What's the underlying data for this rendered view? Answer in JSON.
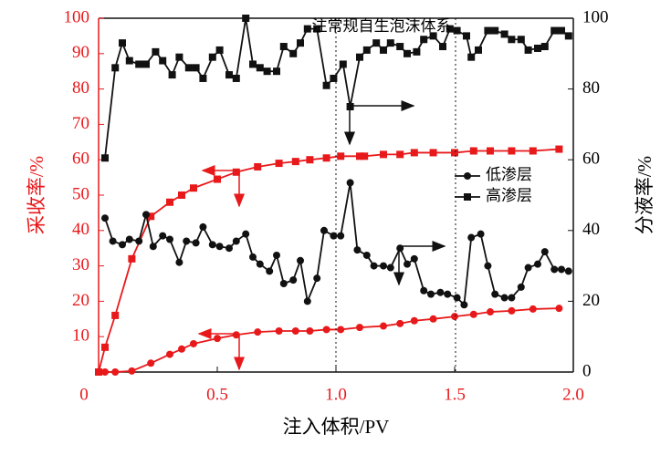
{
  "chart_data": {
    "type": "line",
    "annotation": "注常规自生泡沫体系",
    "xlabel": "注入体积/PV",
    "ylabel": "采收率/%",
    "y2label": "分液率/%",
    "xlim": [
      0,
      2.0
    ],
    "ylim": [
      0,
      100
    ],
    "y2lim": [
      0,
      100
    ],
    "xticks": [
      0.5,
      {
        "value": 1.0,
        "label": "1.0"
      },
      1.5,
      {
        "value": 2.0,
        "label": "2.0"
      }
    ],
    "yticks": [
      0,
      10,
      20,
      30,
      40,
      50,
      60,
      70,
      80,
      90,
      100
    ],
    "y2ticks": [
      0,
      20,
      40,
      60,
      80,
      100
    ],
    "legend": "right",
    "series": [
      {
        "color": "#e8191b",
        "marker": "square",
        "x": [
          0,
          0.027,
          0.07,
          0.14,
          0.22,
          0.3,
          0.35,
          0.4,
          0.5,
          0.58,
          0.67,
          0.76,
          0.83,
          0.89,
          0.96,
          1.02,
          1.1,
          1.12,
          1.2,
          1.27,
          1.33,
          1.41,
          1.5,
          1.58,
          1.65,
          1.74,
          1.83,
          1.94
        ],
        "values": [
          0,
          7,
          16,
          32,
          44,
          48,
          50,
          52,
          54.5,
          56.5,
          58,
          59,
          59.5,
          60,
          60.5,
          61,
          61,
          61,
          61.5,
          61.5,
          62,
          62,
          62,
          62.5,
          62.5,
          62.5,
          62.5,
          63
        ]
      },
      {
        "color": "#e8191b",
        "marker": "circle",
        "x": [
          0,
          0.027,
          0.07,
          0.14,
          0.22,
          0.3,
          0.35,
          0.4,
          0.5,
          0.58,
          0.67,
          0.76,
          0.83,
          0.89,
          0.96,
          1.02,
          1.1,
          1.2,
          1.27,
          1.33,
          1.41,
          1.5,
          1.58,
          1.65,
          1.74,
          1.83,
          1.94
        ],
        "values": [
          0,
          0,
          0,
          0.3,
          2.5,
          5,
          6.5,
          8,
          9.5,
          10.5,
          11.3,
          11.6,
          11.6,
          11.6,
          12,
          12,
          12.6,
          13,
          13.7,
          14.5,
          15,
          15.7,
          16.3,
          17,
          17.3,
          17.8,
          18
        ]
      },
      {
        "name": "低渗层",
        "color": "#111111",
        "marker": "circle",
        "axis": "y2",
        "x": [
          0.027,
          0.06,
          0.1,
          0.13,
          0.17,
          0.2,
          0.23,
          0.27,
          0.3,
          0.34,
          0.37,
          0.41,
          0.44,
          0.48,
          0.51,
          0.55,
          0.58,
          0.62,
          0.65,
          0.68,
          0.72,
          0.75,
          0.78,
          0.82,
          0.85,
          0.88,
          0.92,
          0.95,
          0.99,
          1.02,
          1.06,
          1.09,
          1.13,
          1.16,
          1.2,
          1.23,
          1.27,
          1.3,
          1.33,
          1.37,
          1.4,
          1.44,
          1.47,
          1.51,
          1.54,
          1.57,
          1.61,
          1.64,
          1.67,
          1.71,
          1.74,
          1.78,
          1.81,
          1.85,
          1.88,
          1.92,
          1.95,
          1.98
        ],
        "values": [
          43.5,
          37,
          36,
          37.5,
          37,
          44.5,
          35.5,
          38.5,
          37.5,
          31,
          37,
          36.5,
          41,
          36,
          35.5,
          35,
          37,
          39,
          32.5,
          30.5,
          28.5,
          33,
          25,
          26,
          31.5,
          20,
          26.5,
          40,
          38.5,
          38.5,
          53.5,
          34.5,
          33,
          30,
          30,
          29.5,
          35,
          30.5,
          32,
          23,
          22,
          22.5,
          22,
          21,
          19,
          38,
          39,
          30,
          22,
          21,
          21,
          24,
          29.5,
          30.5,
          34,
          29,
          29,
          28.5
        ]
      },
      {
        "name": "高渗层",
        "color": "#111111",
        "marker": "square",
        "axis": "y2",
        "x": [
          0.027,
          0.07,
          0.1,
          0.13,
          0.17,
          0.2,
          0.24,
          0.27,
          0.31,
          0.34,
          0.38,
          0.41,
          0.44,
          0.48,
          0.51,
          0.55,
          0.58,
          0.62,
          0.65,
          0.68,
          0.71,
          0.75,
          0.78,
          0.82,
          0.85,
          0.88,
          0.92,
          0.96,
          0.99,
          1.03,
          1.06,
          1.1,
          1.13,
          1.17,
          1.2,
          1.23,
          1.27,
          1.3,
          1.34,
          1.37,
          1.41,
          1.45,
          1.48,
          1.51,
          1.55,
          1.57,
          1.6,
          1.64,
          1.67,
          1.71,
          1.74,
          1.78,
          1.81,
          1.85,
          1.88,
          1.92,
          1.95,
          1.98
        ],
        "values": [
          60.5,
          86,
          93,
          88,
          87,
          87,
          90.5,
          88,
          84,
          89,
          86,
          86,
          83,
          89,
          91,
          84,
          83,
          100,
          87,
          86,
          85,
          85,
          92,
          90,
          93,
          97,
          97,
          81,
          83,
          87,
          75,
          89,
          91,
          93,
          91,
          93,
          92,
          90,
          90.5,
          94,
          95,
          92,
          97,
          96.5,
          95,
          89,
          91,
          96.5,
          96.5,
          95.5,
          94,
          94,
          91,
          91.5,
          92,
          96.5,
          96.5,
          95
        ]
      }
    ]
  }
}
